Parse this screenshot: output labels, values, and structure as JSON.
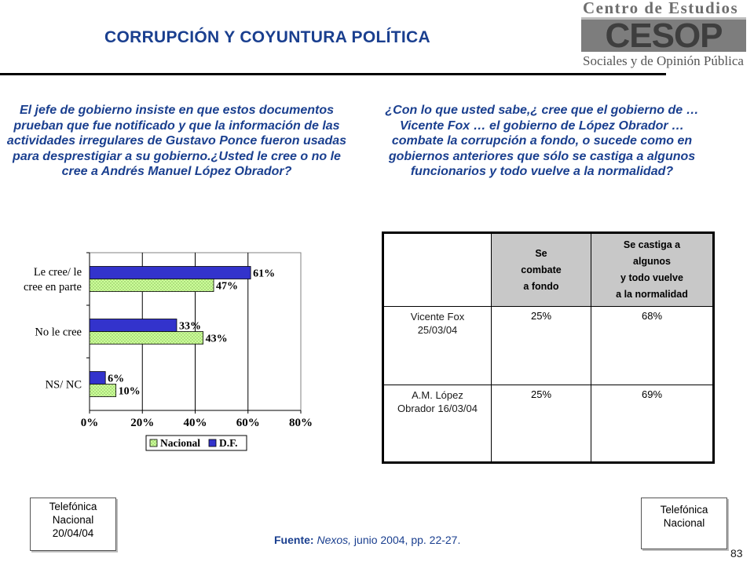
{
  "header": {
    "title": "CORRUPCIÓN Y COYUNTURA  POLÍTICA",
    "logo_line1": "Centro de Estudios",
    "logo_mark": "CESOP",
    "logo_line3": "Sociales y de Opinión Pública"
  },
  "question_left": "El jefe de gobierno insiste en que estos documentos prueban que fue notificado y que la información de las actividades irregulares de Gustavo Ponce fueron usadas para desprestigiar a su gobierno.¿Usted le cree o no le cree a Andrés Manuel López Obrador?",
  "question_right": "¿Con lo que usted sabe,¿ cree que el gobierno de … Vicente Fox … el gobierno de López Obrador … combate la corrupción a fondo, o sucede como en gobiernos anteriores que sólo se castiga a algunos funcionarios y todo vuelve a la normalidad?",
  "chart_data": {
    "type": "bar",
    "orientation": "horizontal",
    "categories": [
      "Le cree/ le cree en parte",
      "No le cree",
      "NS/ NC"
    ],
    "category_lines": [
      [
        "Le cree/ le",
        "cree en parte"
      ],
      [
        "No le cree"
      ],
      [
        "NS/ NC"
      ]
    ],
    "series": [
      {
        "name": "D.F.",
        "values": [
          61,
          33,
          6
        ],
        "color": "#3333cc"
      },
      {
        "name": "Nacional",
        "values": [
          47,
          43,
          10
        ],
        "color": "#ccff99"
      }
    ],
    "value_labels": {
      "D.F.": [
        "61%",
        "33%",
        "6%"
      ],
      "Nacional": [
        "47%",
        "43%",
        "10%"
      ]
    },
    "xlim": [
      0,
      80
    ],
    "xticks": [
      0,
      20,
      40,
      60,
      80
    ],
    "xtick_labels": [
      "0%",
      "20%",
      "40%",
      "60%",
      "80%"
    ],
    "grid": true,
    "legend": [
      "Nacional",
      "D.F."
    ],
    "legend_position": "bottom"
  },
  "table": {
    "headers": [
      "",
      "Se combate a fondo",
      "Se castiga a algunos y todo vuelve a la normalidad"
    ],
    "header_lines": [
      [],
      [
        "Se",
        "combate",
        "a fondo"
      ],
      [
        "Se castiga a",
        "algunos",
        "y todo vuelve",
        "a la normalidad"
      ]
    ],
    "rows": [
      {
        "label_lines": [
          "Vicente Fox",
          "25/03/04"
        ],
        "combate": "25%",
        "castiga": "68%"
      },
      {
        "label_lines": [
          "A.M. López",
          "Obrador 16/03/04"
        ],
        "combate": "25%",
        "castiga": "69%"
      }
    ]
  },
  "note_left": [
    "Telefónica",
    "Nacional",
    "20/04/04"
  ],
  "note_right": [
    "Telefónica",
    "Nacional"
  ],
  "source": {
    "label": "Fuente:",
    "publication": "Nexos,",
    "detail": " junio 2004, pp. 22-27."
  },
  "page_number": "83"
}
